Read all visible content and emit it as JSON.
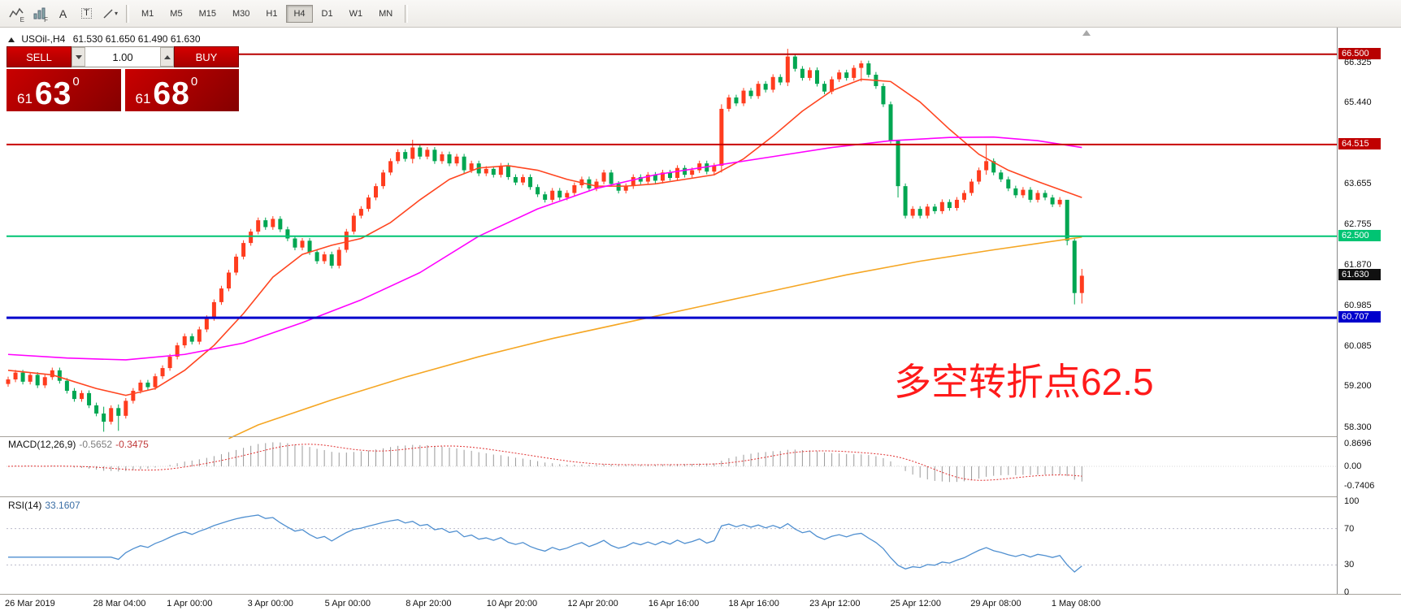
{
  "window": {
    "title_symbol": "USOil-,H4",
    "title_ohlc": "61.530 61.650 61.490 61.630"
  },
  "toolbar": {
    "icons": [
      {
        "name": "chart-expert-icon",
        "glyph": "E"
      },
      {
        "name": "chart-grid-icon",
        "glyph": "F"
      },
      {
        "name": "text-label-icon",
        "glyph": "A"
      },
      {
        "name": "text-box-icon",
        "glyph": "T"
      },
      {
        "name": "line-tools-icon",
        "glyph": "▾"
      }
    ],
    "timeframes": [
      "M1",
      "M5",
      "M15",
      "M30",
      "H1",
      "H4",
      "D1",
      "W1",
      "MN"
    ],
    "active_timeframe": "H4"
  },
  "trade_panel": {
    "sell_label": "SELL",
    "buy_label": "BUY",
    "volume": "1.00",
    "sell_price": {
      "prefix": "61",
      "big": "63",
      "sup": "0"
    },
    "buy_price": {
      "prefix": "61",
      "big": "68",
      "sup": "0"
    }
  },
  "price_axis": {
    "ticks": [
      "66.325",
      "65.440",
      "63.655",
      "62.755",
      "61.870",
      "60.985",
      "60.085",
      "59.200",
      "58.300"
    ],
    "badges": [
      {
        "label": "66.500",
        "color": "#b80000"
      },
      {
        "label": "64.515",
        "color": "#c00000"
      },
      {
        "label": "62.500",
        "color": "#00c473"
      },
      {
        "label": "61.630",
        "color": "#101010"
      },
      {
        "label": "60.707",
        "color": "#0000cc"
      }
    ]
  },
  "hlines": [
    {
      "price": 66.5,
      "color": "#b80000",
      "width": 2
    },
    {
      "price": 64.515,
      "color": "#c80000",
      "width": 2
    },
    {
      "price": 62.5,
      "color": "#00c473",
      "width": 2
    },
    {
      "price": 60.707,
      "color": "#0000cc",
      "width": 3
    }
  ],
  "annotation": {
    "text": "多空转折点62.5",
    "color": "#ff1a1a"
  },
  "macd_panel": {
    "name": "MACD(12,26,9)",
    "value_main": "-0.5652",
    "value_signal": "-0.3475",
    "axis": [
      "0.8696",
      "0.00",
      "-0.7406"
    ]
  },
  "rsi_panel": {
    "name": "RSI(14)",
    "value": "33.1607",
    "axis": [
      "100",
      "70",
      "30",
      "0"
    ]
  },
  "time_axis": [
    {
      "label": "26 Mar 2019",
      "i": 0
    },
    {
      "label": "28 Mar 04:00",
      "i": 12
    },
    {
      "label": "1 Apr 00:00",
      "i": 22
    },
    {
      "label": "3 Apr 00:00",
      "i": 33
    },
    {
      "label": "5 Apr 00:00",
      "i": 43.5
    },
    {
      "label": "8 Apr 20:00",
      "i": 54.5
    },
    {
      "label": "10 Apr 20:00",
      "i": 65.5
    },
    {
      "label": "12 Apr 20:00",
      "i": 76.5
    },
    {
      "label": "16 Apr 16:00",
      "i": 87.5
    },
    {
      "label": "18 Apr 16:00",
      "i": 98.4
    },
    {
      "label": "23 Apr 12:00",
      "i": 109.4
    },
    {
      "label": "25 Apr 12:00",
      "i": 120.4
    },
    {
      "label": "29 Apr 08:00",
      "i": 131.3
    },
    {
      "label": "1 May 08:00",
      "i": 142.3
    }
  ],
  "chart_data": {
    "type": "candlestick",
    "symbol": "USOil-",
    "period": "H4",
    "current_bar": {
      "open": 61.53,
      "high": 61.65,
      "low": 61.49,
      "close": 61.63
    },
    "visible_price_range": [
      58.1,
      67.05
    ],
    "up_color": "#ff3c1e",
    "down_color": "#00a651",
    "ohlc_derivation": "open equals previous close; highs/lows approximate with wick overrides",
    "closes": [
      59.35,
      59.5,
      59.3,
      59.45,
      59.22,
      59.4,
      59.55,
      59.32,
      59.1,
      58.92,
      59.05,
      58.78,
      58.6,
      58.42,
      58.72,
      58.55,
      58.88,
      59.1,
      59.28,
      59.18,
      59.42,
      59.6,
      59.85,
      60.1,
      60.3,
      60.18,
      60.45,
      60.7,
      61.05,
      61.35,
      61.7,
      62.05,
      62.35,
      62.6,
      62.85,
      62.7,
      62.88,
      62.65,
      62.45,
      62.25,
      62.4,
      62.15,
      61.95,
      62.1,
      61.85,
      62.2,
      62.6,
      62.95,
      63.1,
      63.35,
      63.6,
      63.9,
      64.15,
      64.35,
      64.2,
      64.45,
      64.25,
      64.4,
      64.15,
      64.3,
      64.1,
      64.25,
      63.95,
      64.1,
      63.88,
      63.98,
      63.85,
      64.05,
      63.8,
      63.68,
      63.8,
      63.58,
      63.42,
      63.3,
      63.5,
      63.35,
      63.45,
      63.62,
      63.75,
      63.55,
      63.7,
      63.9,
      63.65,
      63.5,
      63.6,
      63.8,
      63.7,
      63.85,
      63.72,
      63.9,
      63.78,
      64.0,
      63.85,
      63.95,
      64.1,
      63.92,
      64.05,
      65.3,
      65.55,
      65.42,
      65.7,
      65.58,
      65.85,
      65.72,
      66.0,
      65.88,
      66.45,
      66.18,
      65.98,
      66.15,
      65.85,
      65.68,
      65.95,
      66.1,
      65.98,
      66.2,
      66.3,
      66.05,
      65.8,
      65.4,
      64.6,
      63.6,
      62.95,
      63.1,
      62.95,
      63.15,
      63.05,
      63.25,
      63.12,
      63.3,
      63.45,
      63.7,
      63.95,
      64.15,
      63.9,
      63.75,
      63.55,
      63.4,
      63.52,
      63.3,
      63.45,
      63.35,
      63.2,
      63.3,
      62.4,
      61.25,
      61.63
    ],
    "wicks": {
      "13": [
        58.75,
        58.2
      ],
      "15": [
        58.8,
        58.22
      ],
      "55": [
        64.62,
        64.1
      ],
      "97": [
        65.4,
        63.9
      ],
      "106": [
        66.62,
        65.8
      ],
      "116": [
        66.36,
        65.9
      ],
      "121": [
        64.55,
        63.35
      ],
      "133": [
        64.52,
        63.85
      ],
      "144": [
        63.3,
        62.3
      ],
      "145": [
        62.45,
        61.0
      ],
      "146": [
        61.78,
        61.02
      ]
    },
    "ma_lines": [
      {
        "name": "ma-fast",
        "color": "#ff4520",
        "points": [
          [
            0,
            59.55
          ],
          [
            6,
            59.45
          ],
          [
            12,
            59.15
          ],
          [
            16,
            59.0
          ],
          [
            20,
            59.15
          ],
          [
            24,
            59.55
          ],
          [
            28,
            60.1
          ],
          [
            32,
            60.8
          ],
          [
            36,
            61.6
          ],
          [
            40,
            62.1
          ],
          [
            44,
            62.3
          ],
          [
            48,
            62.45
          ],
          [
            52,
            62.8
          ],
          [
            56,
            63.3
          ],
          [
            60,
            63.75
          ],
          [
            64,
            64.0
          ],
          [
            68,
            64.05
          ],
          [
            72,
            63.95
          ],
          [
            76,
            63.75
          ],
          [
            80,
            63.6
          ],
          [
            84,
            63.6
          ],
          [
            88,
            63.65
          ],
          [
            92,
            63.75
          ],
          [
            96,
            63.85
          ],
          [
            100,
            64.2
          ],
          [
            104,
            64.7
          ],
          [
            108,
            65.25
          ],
          [
            112,
            65.7
          ],
          [
            116,
            65.95
          ],
          [
            120,
            65.9
          ],
          [
            124,
            65.45
          ],
          [
            128,
            64.85
          ],
          [
            132,
            64.3
          ],
          [
            136,
            63.95
          ],
          [
            140,
            63.7
          ],
          [
            146,
            63.35
          ]
        ]
      },
      {
        "name": "ma-medium",
        "color": "#ff00ff",
        "points": [
          [
            0,
            59.9
          ],
          [
            8,
            59.82
          ],
          [
            16,
            59.78
          ],
          [
            24,
            59.9
          ],
          [
            32,
            60.15
          ],
          [
            40,
            60.6
          ],
          [
            48,
            61.1
          ],
          [
            56,
            61.7
          ],
          [
            64,
            62.5
          ],
          [
            72,
            63.1
          ],
          [
            80,
            63.55
          ],
          [
            88,
            63.85
          ],
          [
            96,
            64.05
          ],
          [
            104,
            64.25
          ],
          [
            112,
            64.45
          ],
          [
            120,
            64.6
          ],
          [
            128,
            64.67
          ],
          [
            134,
            64.68
          ],
          [
            140,
            64.6
          ],
          [
            146,
            64.45
          ]
        ]
      },
      {
        "name": "ma-slow",
        "color": "#f5a623",
        "points": [
          [
            30,
            58.05
          ],
          [
            34,
            58.35
          ],
          [
            44,
            58.9
          ],
          [
            54,
            59.4
          ],
          [
            64,
            59.85
          ],
          [
            74,
            60.25
          ],
          [
            84,
            60.6
          ],
          [
            94,
            60.95
          ],
          [
            104,
            61.3
          ],
          [
            114,
            61.65
          ],
          [
            124,
            61.95
          ],
          [
            134,
            62.2
          ],
          [
            146,
            62.48
          ]
        ]
      }
    ]
  }
}
